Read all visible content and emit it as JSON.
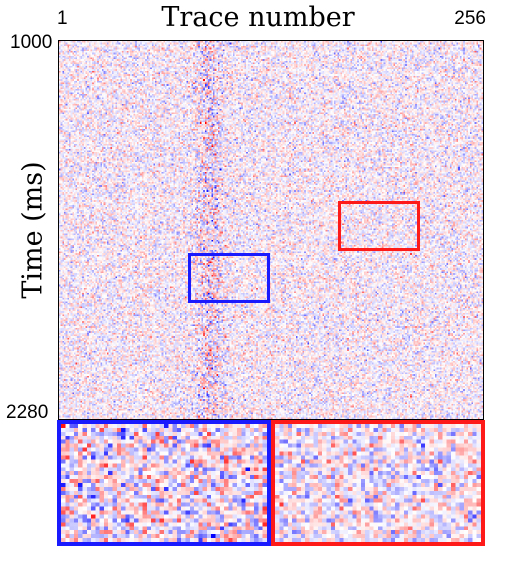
{
  "figure": {
    "title": "Trace number",
    "ylabel": "Time (ms)",
    "x_ticks": [
      "1",
      "256"
    ],
    "y_ticks": [
      "1000",
      "2280"
    ]
  },
  "colors": {
    "colormap": "seismic (blue-white-red)",
    "box_blue": "#1a1aff",
    "box_red": "#ff1a1a"
  },
  "highlight_boxes": [
    {
      "name": "blue",
      "color": "#1a1aff",
      "trace_range": [
        80,
        127
      ],
      "time_range_ms": [
        1755,
        1900
      ]
    },
    {
      "name": "red",
      "color": "#ff1a1a",
      "trace_range": [
        169,
        216
      ],
      "time_range_ms": [
        1535,
        1685
      ]
    }
  ],
  "zoom_panels": [
    {
      "name": "blue-zoom",
      "color": "#1a1aff"
    },
    {
      "name": "red-zoom",
      "color": "#ff1a1a"
    }
  ]
}
